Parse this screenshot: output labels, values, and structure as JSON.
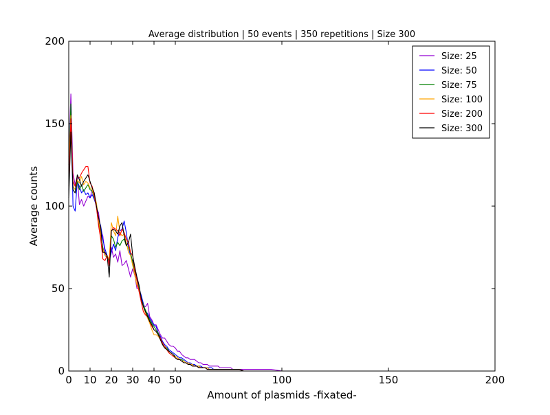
{
  "chart_data": {
    "type": "line",
    "title": "Average distribution | 50 events | 350 repetitions | Size 300",
    "xlabel": "Amount of plasmids -fixated-",
    "ylabel": "Average counts",
    "xlim": [
      0,
      200
    ],
    "ylim": [
      0,
      200
    ],
    "xticks": [
      0,
      10,
      20,
      30,
      40,
      50,
      100,
      150,
      200
    ],
    "yticks": [
      0,
      50,
      100,
      150,
      200
    ],
    "grid": false,
    "legend_position": "top-right",
    "x": [
      0,
      1,
      2,
      3,
      4,
      5,
      6,
      7,
      8,
      9,
      10,
      11,
      12,
      13,
      14,
      15,
      16,
      17,
      18,
      19,
      20,
      21,
      22,
      23,
      24,
      25,
      26,
      27,
      28,
      29,
      30,
      31,
      32,
      33,
      34,
      35,
      36,
      37,
      38,
      39,
      40,
      41,
      42,
      43,
      44,
      45,
      46,
      47,
      48,
      49,
      50,
      51,
      52,
      53,
      54,
      55,
      56,
      57,
      58,
      59,
      60,
      61,
      62,
      63,
      64,
      65,
      66,
      67,
      68,
      69,
      70,
      71,
      72,
      73,
      74,
      75,
      76,
      77,
      78,
      79,
      80,
      82,
      84,
      86,
      88,
      90,
      95,
      100,
      110,
      120,
      130,
      140,
      150,
      160,
      170,
      180,
      191
    ],
    "series": [
      {
        "name": "Size: 25",
        "color": "#9400d3",
        "values": [
          130,
          168,
          120,
          113,
          118,
          101,
          104,
          100,
          103,
          106,
          105,
          110,
          106,
          99,
          96,
          85,
          82,
          71,
          70,
          66,
          75,
          69,
          71,
          66,
          73,
          64,
          65,
          67,
          62,
          57,
          62,
          58,
          50,
          50,
          42,
          40,
          39,
          41,
          33,
          31,
          28,
          28,
          25,
          22,
          20,
          20,
          18,
          16,
          15,
          15,
          14,
          12,
          12,
          10,
          9,
          8,
          8,
          7,
          7,
          7,
          6,
          5,
          5,
          4,
          4,
          4,
          3,
          3,
          3,
          3,
          3,
          2,
          2,
          2,
          2,
          2,
          2,
          1,
          1,
          1,
          1,
          1,
          1,
          1,
          1,
          1,
          1,
          0,
          0,
          0,
          0,
          0,
          0,
          0,
          0,
          0,
          0
        ]
      },
      {
        "name": "Size: 50",
        "color": "#0000ff",
        "values": [
          110,
          160,
          100,
          97,
          115,
          112,
          108,
          110,
          107,
          108,
          105,
          107,
          104,
          100,
          92,
          88,
          80,
          74,
          70,
          67,
          72,
          77,
          73,
          81,
          85,
          86,
          91,
          84,
          75,
          70,
          67,
          62,
          56,
          50,
          46,
          41,
          36,
          35,
          32,
          30,
          28,
          27,
          23,
          21,
          18,
          16,
          15,
          13,
          12,
          11,
          10,
          9,
          8,
          8,
          7,
          6,
          5,
          5,
          4,
          4,
          3,
          3,
          3,
          2,
          2,
          2,
          2,
          2,
          1,
          1,
          1,
          1,
          1,
          1,
          1,
          1,
          1,
          1,
          1,
          1,
          1,
          0,
          0,
          0,
          0,
          0,
          0,
          0,
          0,
          0,
          0,
          0,
          0,
          0,
          0,
          0,
          0
        ]
      },
      {
        "name": "Size: 75",
        "color": "#008000",
        "values": [
          125,
          162,
          110,
          108,
          115,
          110,
          113,
          109,
          111,
          113,
          110,
          109,
          105,
          100,
          90,
          82,
          75,
          70,
          69,
          67,
          82,
          80,
          75,
          78,
          76,
          79,
          80,
          76,
          75,
          72,
          66,
          60,
          55,
          50,
          44,
          40,
          37,
          34,
          31,
          29,
          27,
          25,
          23,
          20,
          17,
          15,
          14,
          12,
          11,
          10,
          9,
          8,
          7,
          7,
          6,
          5,
          5,
          4,
          4,
          3,
          3,
          3,
          2,
          2,
          2,
          2,
          1,
          1,
          1,
          1,
          1,
          1,
          1,
          1,
          1,
          1,
          1,
          1,
          1,
          1,
          1,
          0,
          0,
          0,
          0,
          0,
          0,
          0,
          0,
          0,
          0,
          0,
          0,
          0,
          0,
          0,
          0
        ]
      },
      {
        "name": "Size: 100",
        "color": "#ffa500",
        "values": [
          118,
          155,
          112,
          110,
          116,
          114,
          118,
          113,
          115,
          114,
          111,
          110,
          106,
          102,
          92,
          83,
          74,
          70,
          70,
          68,
          90,
          85,
          82,
          94,
          84,
          82,
          83,
          78,
          72,
          70,
          64,
          58,
          52,
          49,
          44,
          39,
          35,
          32,
          29,
          25,
          22,
          22,
          21,
          19,
          16,
          14,
          13,
          11,
          10,
          9,
          9,
          8,
          7,
          6,
          6,
          5,
          5,
          4,
          4,
          3,
          3,
          3,
          2,
          2,
          2,
          2,
          1,
          1,
          1,
          1,
          1,
          1,
          1,
          1,
          1,
          1,
          1,
          1,
          1,
          1,
          1,
          0,
          0,
          0,
          0,
          0,
          0,
          0,
          0,
          0,
          0,
          0,
          0,
          0,
          0,
          0,
          0
        ]
      },
      {
        "name": "Size: 200",
        "color": "#ff0000",
        "values": [
          112,
          153,
          115,
          112,
          118,
          117,
          120,
          122,
          124,
          124,
          114,
          112,
          106,
          99,
          88,
          80,
          68,
          67,
          70,
          64,
          85,
          87,
          86,
          85,
          82,
          86,
          84,
          80,
          78,
          72,
          70,
          61,
          55,
          48,
          42,
          36,
          34,
          33,
          30,
          27,
          25,
          24,
          22,
          20,
          17,
          15,
          13,
          11,
          10,
          9,
          8,
          7,
          7,
          6,
          5,
          5,
          4,
          4,
          3,
          3,
          3,
          2,
          2,
          2,
          2,
          1,
          1,
          1,
          1,
          1,
          1,
          1,
          1,
          1,
          1,
          1,
          1,
          1,
          1,
          1,
          1,
          0,
          0,
          0,
          0,
          0,
          0,
          0,
          0,
          0,
          0,
          0,
          0,
          0,
          0,
          0,
          0
        ]
      },
      {
        "name": "Size: 300",
        "color": "#000000",
        "values": [
          105,
          145,
          110,
          108,
          119,
          116,
          112,
          115,
          117,
          119,
          115,
          111,
          108,
          100,
          93,
          87,
          72,
          72,
          70,
          57,
          85,
          86,
          85,
          83,
          88,
          90,
          82,
          76,
          78,
          83,
          70,
          63,
          57,
          52,
          44,
          39,
          36,
          33,
          30,
          28,
          25,
          24,
          22,
          19,
          16,
          14,
          13,
          12,
          11,
          10,
          8,
          7,
          7,
          6,
          5,
          5,
          4,
          4,
          3,
          3,
          3,
          2,
          2,
          2,
          2,
          1,
          1,
          1,
          1,
          1,
          1,
          1,
          1,
          1,
          1,
          1,
          1,
          1,
          1,
          1,
          1,
          0,
          0,
          0,
          0,
          0,
          0,
          0,
          0,
          0,
          0,
          0,
          0,
          0,
          0,
          0,
          0
        ]
      }
    ]
  }
}
